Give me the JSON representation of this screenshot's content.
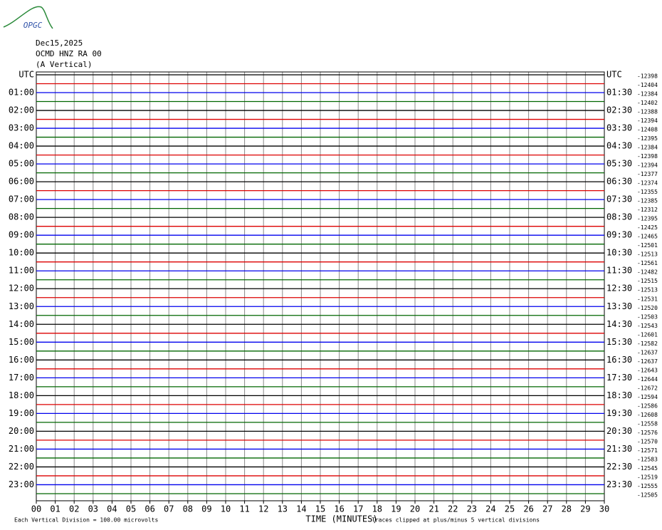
{
  "chart_data": {
    "type": "helicorder",
    "logo": "OPGC",
    "date": "Dec15,2025",
    "station": "OCMD HNZ RA 00",
    "component": "(A Vertical)",
    "xlabel": "TIME (MINUTES)",
    "scale_note": "Each Vertical Division =  100.00 microvolts",
    "clip_note": "Traces clipped at plus/minus 5 vertical divisions",
    "xlim": [
      0,
      30
    ],
    "xticks": [
      {
        "value": 0,
        "label": "00"
      },
      {
        "value": 1,
        "label": "01"
      },
      {
        "value": 2,
        "label": "02"
      },
      {
        "value": 3,
        "label": "03"
      },
      {
        "value": 4,
        "label": "04"
      },
      {
        "value": 5,
        "label": "05"
      },
      {
        "value": 6,
        "label": "06"
      },
      {
        "value": 7,
        "label": "07"
      },
      {
        "value": 8,
        "label": "08"
      },
      {
        "value": 9,
        "label": "09"
      },
      10,
      11,
      12,
      13,
      14,
      15,
      16,
      17,
      18,
      19,
      20,
      21,
      22,
      23,
      24,
      25,
      26,
      27,
      28,
      29,
      30
    ],
    "colors": [
      "#000000",
      "#dd0000",
      "#0000ee",
      "#006600"
    ],
    "left_labels": [
      "UTC",
      null,
      "01:00",
      null,
      "02:00",
      null,
      "03:00",
      null,
      "04:00",
      null,
      "05:00",
      null,
      "06:00",
      null,
      "07:00",
      null,
      "08:00",
      null,
      "09:00",
      null,
      "10:00",
      null,
      "11:00",
      null,
      "12:00",
      null,
      "13:00",
      null,
      "14:00",
      null,
      "15:00",
      null,
      "16:00",
      null,
      "17:00",
      null,
      "18:00",
      null,
      "19:00",
      null,
      "20:00",
      null,
      "21:00",
      null,
      "22:00",
      null,
      "23:00",
      null
    ],
    "right_labels": [
      "UTC",
      null,
      "01:30",
      null,
      "02:30",
      null,
      "03:30",
      null,
      "04:30",
      null,
      "05:30",
      null,
      "06:30",
      null,
      "07:30",
      null,
      "08:30",
      null,
      "09:30",
      null,
      "10:30",
      null,
      "11:30",
      null,
      "12:30",
      null,
      "13:30",
      null,
      "14:30",
      null,
      "15:30",
      null,
      "16:30",
      null,
      "17:30",
      null,
      "18:30",
      null,
      "19:30",
      null,
      "20:30",
      null,
      "21:30",
      null,
      "22:30",
      null,
      "23:30",
      null
    ],
    "offsets": [
      -12398,
      -12404,
      -12384,
      -12402,
      -12388,
      -12394,
      -12408,
      -12395,
      -12384,
      -12398,
      -12394,
      -12377,
      -12374,
      -12355,
      -12385,
      -12312,
      -12395,
      -12425,
      -12465,
      -12501,
      -12513,
      -12561,
      -12482,
      -12515,
      -12513,
      -12531,
      -12520,
      -12503,
      -12543,
      -12601,
      -12582,
      -12637,
      -12637,
      -12643,
      -12644,
      -12672,
      -12594,
      -12586,
      -12608,
      -12558,
      -12576,
      -12570,
      -12571,
      -12583,
      -12545,
      -12519,
      -12555,
      -12505
    ]
  }
}
